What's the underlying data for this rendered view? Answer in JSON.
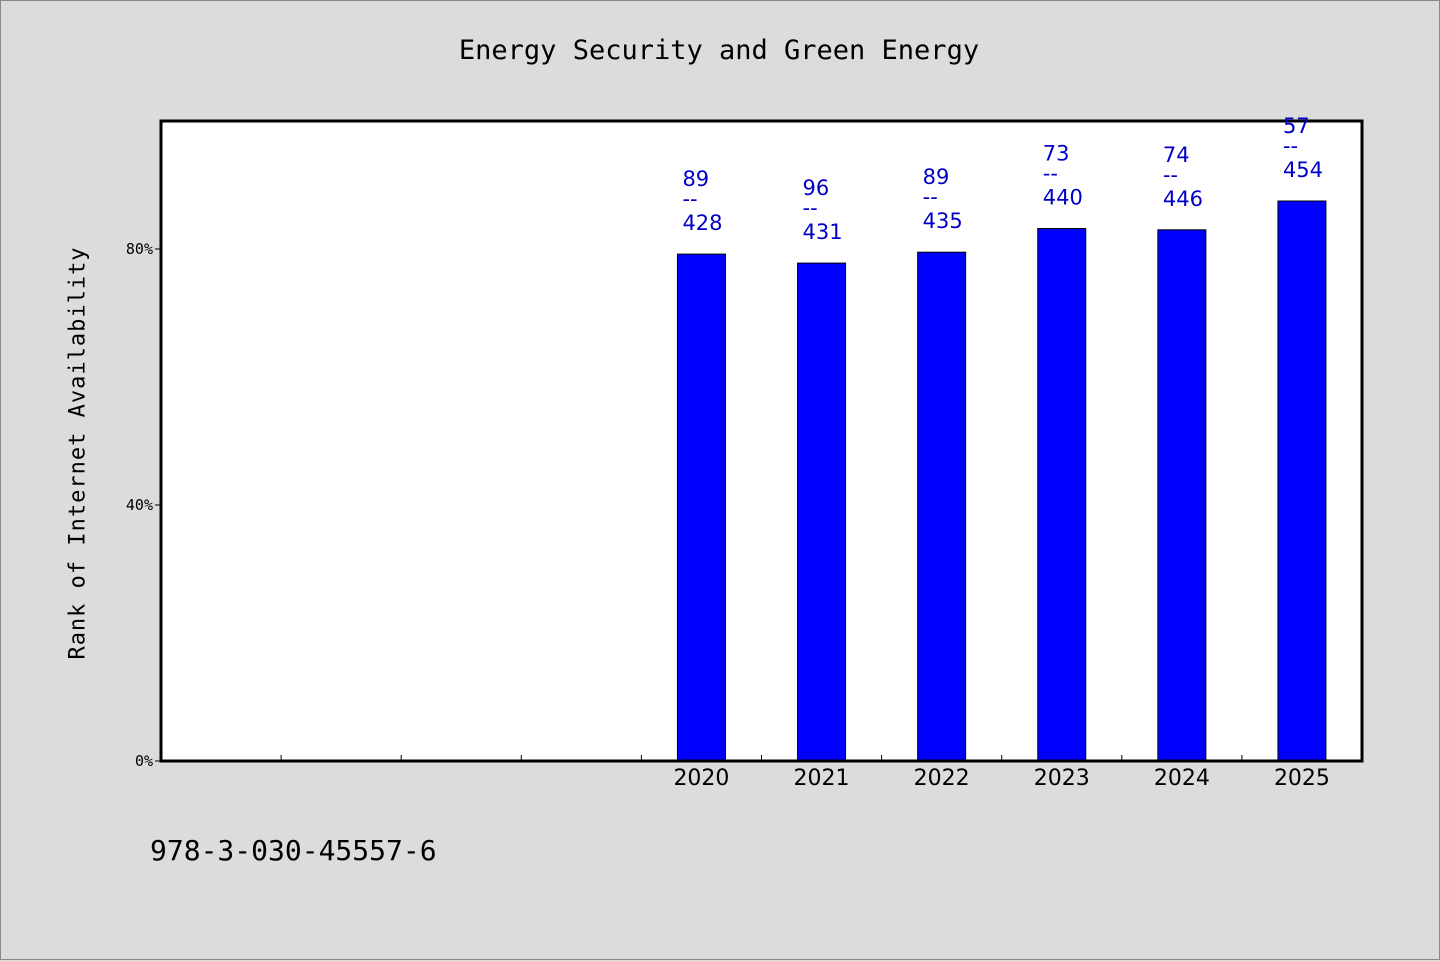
{
  "title": "Energy Security and Green Energy",
  "footer_code": "978-3-030-45557-6",
  "colors": {
    "background": "#dcdcdc",
    "plot_background": "#ffffff",
    "bar_fill": "#0000ff",
    "label_color": "#0000c8"
  },
  "chart_data": {
    "type": "bar",
    "title": "Energy Security and Green Energy",
    "xlabel": "",
    "ylabel": "Rank of Internet Availability",
    "ylim": [
      0,
      100
    ],
    "y_tick_values": [
      0,
      40,
      80
    ],
    "y_tick_labels": [
      "0%",
      "40%",
      "80%"
    ],
    "categories": [
      "",
      "",
      "",
      "",
      "2020",
      "2021",
      "2022",
      "2023",
      "2024",
      "2025"
    ],
    "values": [
      null,
      null,
      null,
      null,
      79.2,
      77.8,
      79.5,
      83.2,
      83.0,
      87.5
    ],
    "data_labels": [
      {
        "category": "2020",
        "top": "89",
        "sep": "--",
        "bottom": "428"
      },
      {
        "category": "2021",
        "top": "96",
        "sep": "--",
        "bottom": "431"
      },
      {
        "category": "2022",
        "top": "89",
        "sep": "--",
        "bottom": "435"
      },
      {
        "category": "2023",
        "top": "73",
        "sep": "--",
        "bottom": "440"
      },
      {
        "category": "2024",
        "top": "74",
        "sep": "--",
        "bottom": "446"
      },
      {
        "category": "2025",
        "top": "57",
        "sep": "--",
        "bottom": "454"
      }
    ],
    "grid": false,
    "legend": "none"
  }
}
